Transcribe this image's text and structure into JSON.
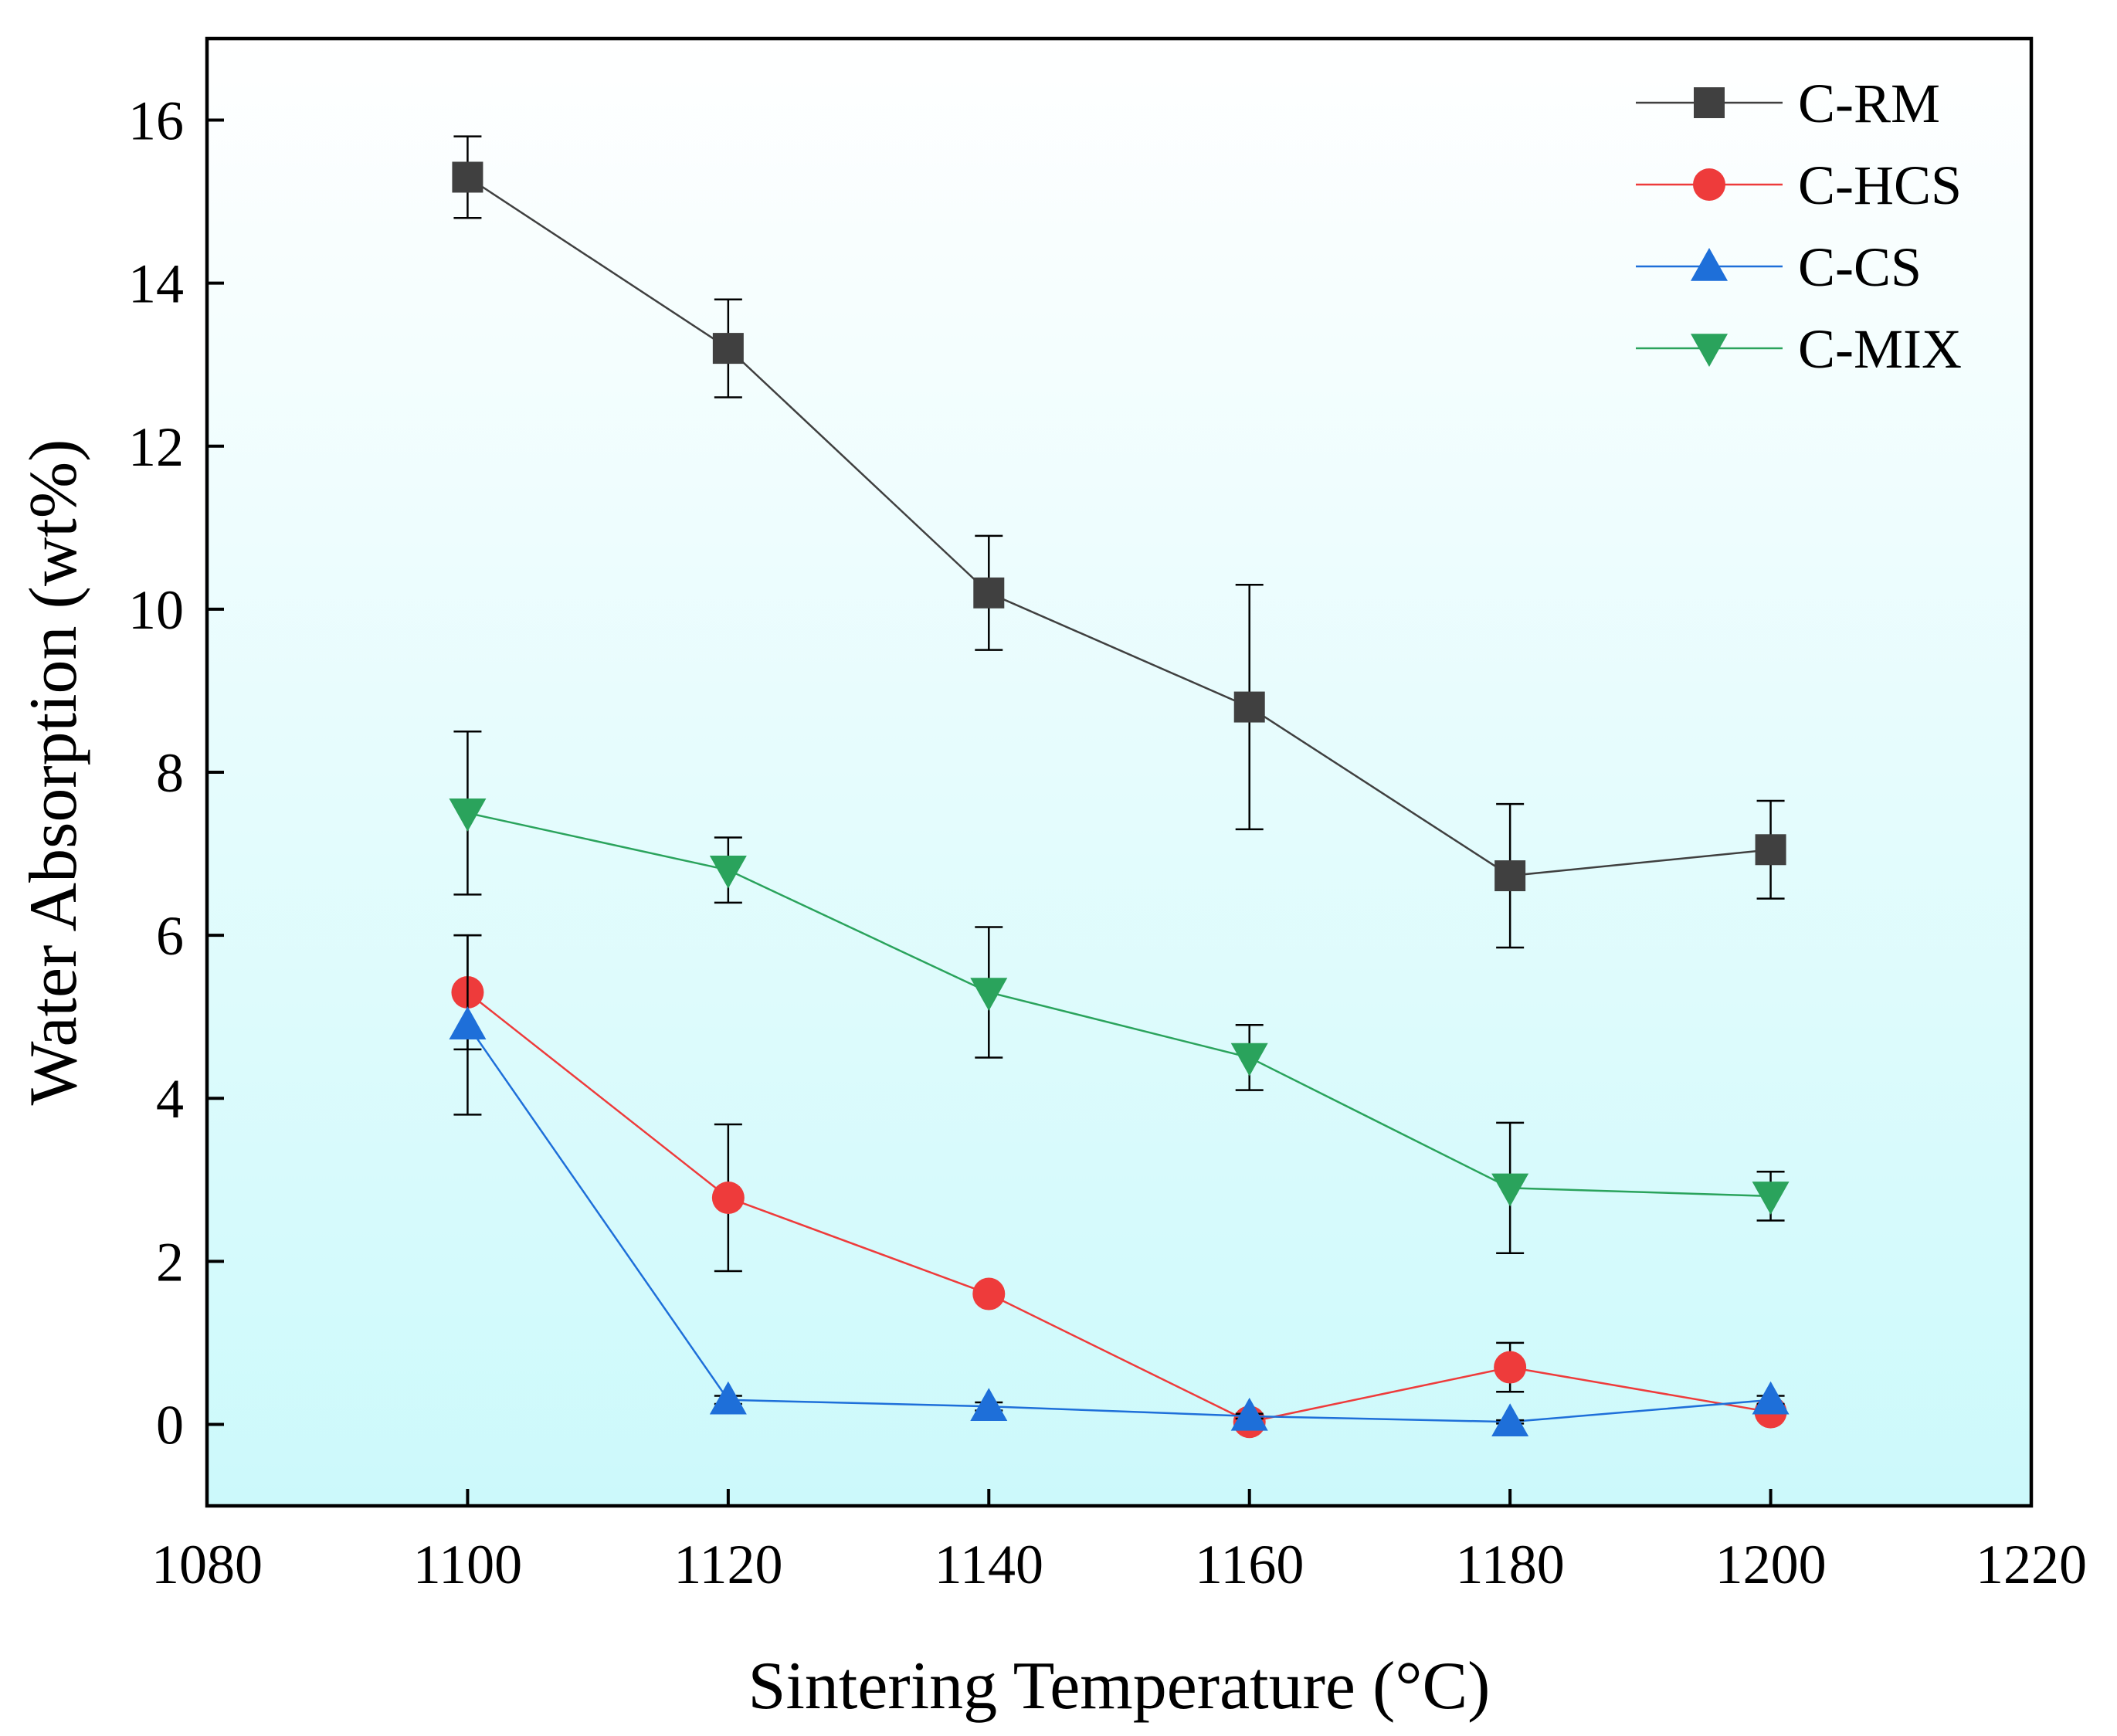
{
  "chart_data": {
    "type": "line",
    "title": "",
    "xlabel": "Sintering Temperature (°C)",
    "ylabel": "Water Absorption (wt%)",
    "xlim": [
      1080,
      1220
    ],
    "ylim": [
      -1,
      17
    ],
    "xticks": [
      1080,
      1100,
      1120,
      1140,
      1160,
      1180,
      1200,
      1220
    ],
    "yticks": [
      0,
      2,
      4,
      6,
      8,
      10,
      12,
      14,
      16
    ],
    "x": [
      1100,
      1120,
      1140,
      1160,
      1180,
      1200
    ],
    "grid": false,
    "background": "gradient light cyan",
    "legend_position": "top-right",
    "series": [
      {
        "name": "C-RM",
        "marker": "square",
        "color": "#404040",
        "values": [
          15.3,
          13.2,
          10.2,
          8.8,
          6.73,
          7.05
        ],
        "errors": [
          0.5,
          0.6,
          0.7,
          1.5,
          0.88,
          0.6
        ]
      },
      {
        "name": "C-HCS",
        "marker": "circle",
        "color": "#ee3b3b",
        "values": [
          5.3,
          2.78,
          1.6,
          0.03,
          0.7,
          0.15
        ],
        "errors": [
          0.7,
          0.9,
          0.05,
          0.03,
          0.3,
          0.05
        ]
      },
      {
        "name": "C-CS",
        "marker": "triangle-up",
        "color": "#1e6fd9",
        "values": [
          4.9,
          0.3,
          0.22,
          0.1,
          0.03,
          0.3
        ],
        "errors": [
          1.1,
          0.05,
          0.05,
          0.03,
          0.02,
          0.05
        ]
      },
      {
        "name": "C-MIX",
        "marker": "triangle-down",
        "color": "#2aa35c",
        "values": [
          7.5,
          6.8,
          5.3,
          4.5,
          2.9,
          2.8
        ],
        "errors": [
          1.0,
          0.4,
          0.8,
          0.4,
          0.8,
          0.3
        ]
      }
    ]
  }
}
